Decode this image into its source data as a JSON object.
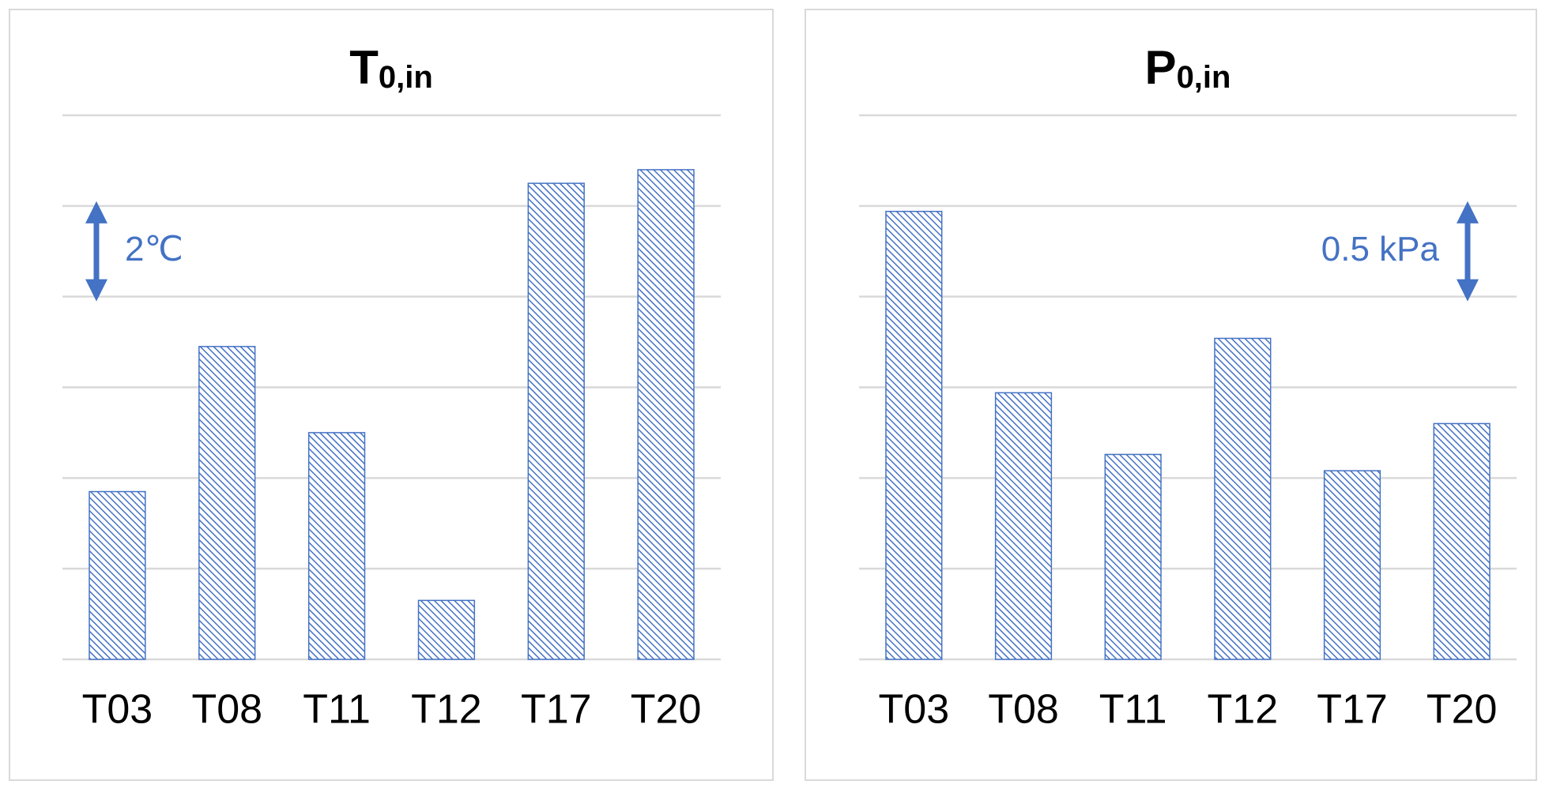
{
  "chart_data": [
    {
      "type": "bar",
      "title": "T",
      "title_sub": "0,in",
      "categories": [
        "T03",
        "T08",
        "T11",
        "T12",
        "T17",
        "T20"
      ],
      "values": [
        3.7,
        6.9,
        5.0,
        1.3,
        10.5,
        10.8
      ],
      "ylim": [
        0,
        12
      ],
      "yticks": [
        0,
        2,
        4,
        6,
        8,
        10,
        12
      ],
      "grid": true,
      "color": "#4472c4",
      "annotation": "2℃",
      "annotation_side": "left"
    },
    {
      "type": "bar",
      "title": "P",
      "title_sub": "0,in",
      "categories": [
        "T03",
        "T08",
        "T11",
        "T12",
        "T17",
        "T20"
      ],
      "values": [
        2.47,
        1.47,
        1.13,
        1.77,
        1.04,
        1.3
      ],
      "ylim": [
        0,
        3
      ],
      "yticks": [
        0,
        0.5,
        1,
        1.5,
        2,
        2.5,
        3
      ],
      "grid": true,
      "color": "#4472c4",
      "annotation": "0.5 kPa",
      "annotation_side": "right"
    }
  ]
}
